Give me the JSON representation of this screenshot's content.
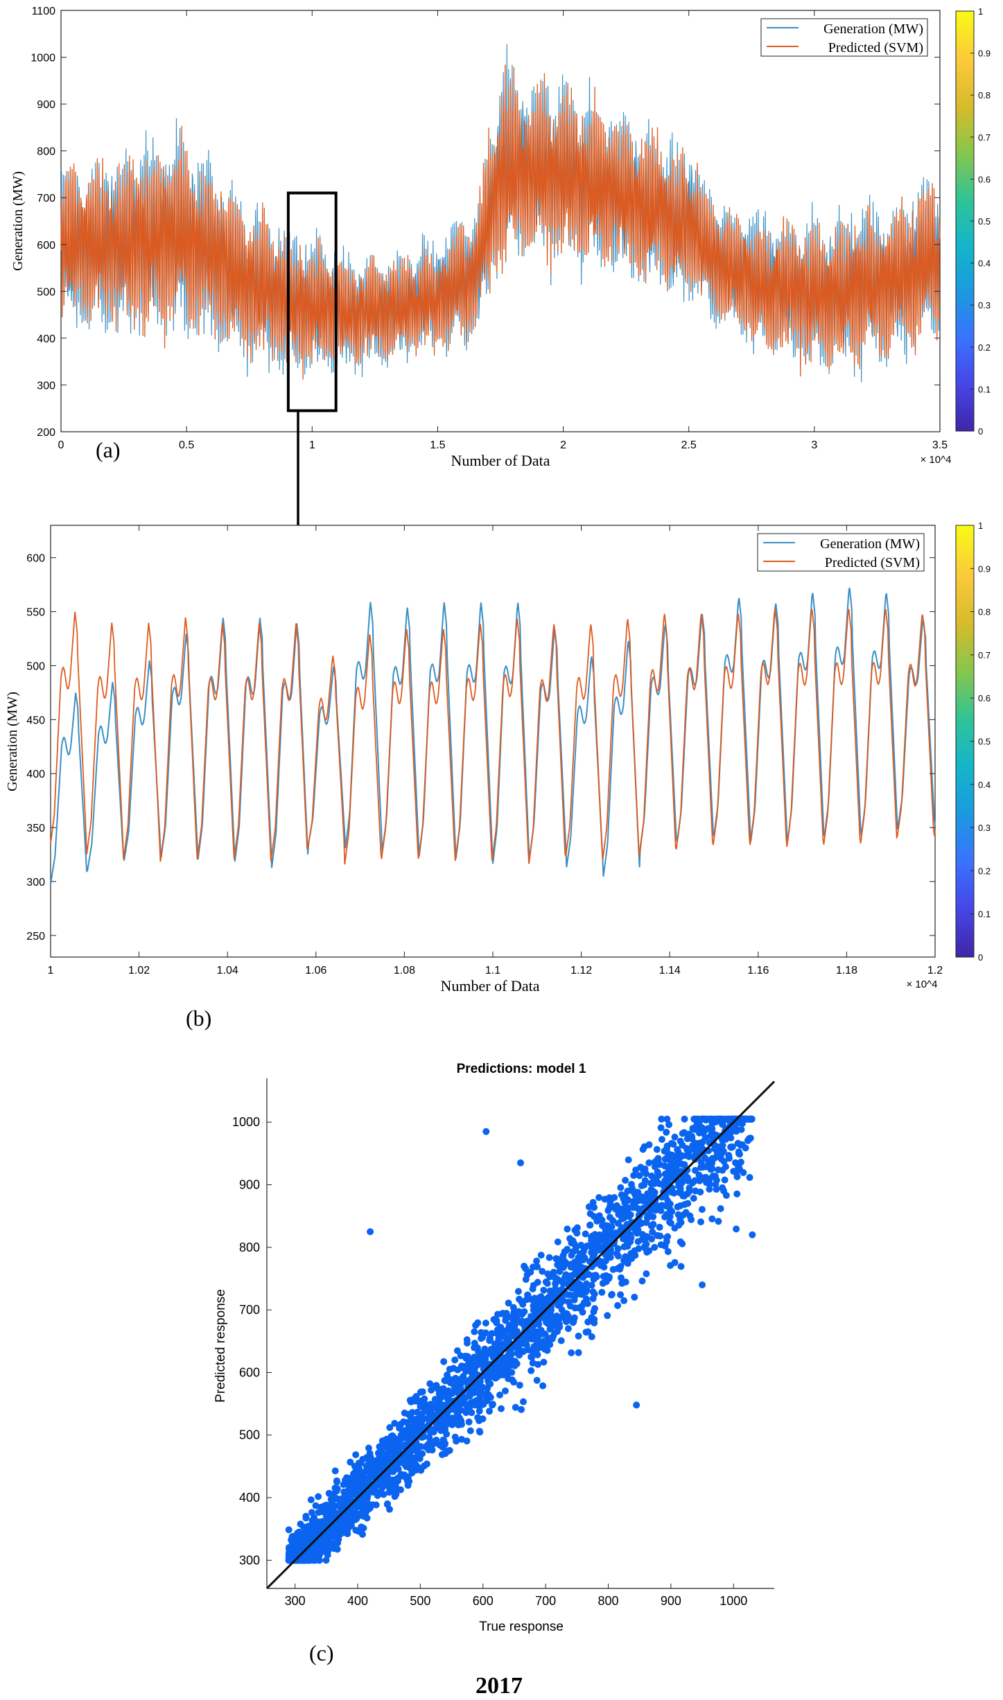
{
  "figure_labels": {
    "a": "(a)",
    "b": "(b)",
    "c": "(c)",
    "caption": "2017"
  },
  "colors": {
    "generation": "#3a8fc4",
    "predicted": "#dd5a1f",
    "scatter": "#0a64f0",
    "axis": "#222222",
    "colorbar": [
      "#3e26a8",
      "#4745e6",
      "#3a72fe",
      "#1b99e0",
      "#14b5c9",
      "#30c397",
      "#85c64e",
      "#d6bb2b",
      "#fbc83c",
      "#f9fb15"
    ]
  },
  "chart_data": [
    {
      "id": "a",
      "type": "line",
      "title": "",
      "xlabel": "Number of Data",
      "ylabel": "Generation (MW)",
      "x_exponent": "× 10^4",
      "xlim": [
        0,
        3.5
      ],
      "ylim": [
        200,
        1100
      ],
      "xticks": [
        0,
        0.5,
        1,
        1.5,
        2,
        2.5,
        3,
        3.5
      ],
      "xtick_labels": [
        "0",
        "0.5",
        "1",
        "1.5",
        "2",
        "2.5",
        "3",
        "3.5"
      ],
      "yticks": [
        200,
        300,
        400,
        500,
        600,
        700,
        800,
        900,
        1000,
        1100
      ],
      "ytick_labels": [
        "200",
        "300",
        "400",
        "500",
        "600",
        "700",
        "800",
        "900",
        "1000",
        "1100"
      ],
      "legend": [
        "Generation (MW)",
        "Predicted (SVM)"
      ],
      "legend_position": "top-right",
      "series": [
        {
          "name": "Generation (MW)",
          "envelope": {
            "x": [
              0,
              0.25,
              0.5,
              0.75,
              1.0,
              1.25,
              1.5,
              1.65,
              1.75,
              1.85,
              2.0,
              2.25,
              2.5,
              2.6,
              2.75,
              3.0,
              3.25,
              3.5
            ],
            "low": [
              410,
              400,
              390,
              340,
              310,
              330,
              360,
              380,
              520,
              560,
              550,
              520,
              470,
              430,
              360,
              320,
              340,
              370
            ],
            "high": [
              780,
              800,
              850,
              700,
              620,
              580,
              620,
              690,
              1020,
              960,
              960,
              890,
              820,
              700,
              680,
              670,
              700,
              760
            ]
          }
        },
        {
          "name": "Predicted (SVM)",
          "envelope": {
            "x": [
              0,
              0.25,
              0.5,
              0.75,
              1.0,
              1.25,
              1.5,
              1.65,
              1.75,
              1.85,
              2.0,
              2.25,
              2.5,
              2.6,
              2.75,
              3.0,
              3.25,
              3.5
            ],
            "low": [
              420,
              410,
              400,
              350,
              320,
              340,
              370,
              400,
              530,
              570,
              560,
              530,
              480,
              440,
              370,
              330,
              350,
              380
            ],
            "high": [
              760,
              790,
              830,
              690,
              600,
              570,
              600,
              680,
              980,
              940,
              930,
              870,
              800,
              690,
              660,
              650,
              680,
              740
            ]
          }
        }
      ],
      "annotations": [
        "zoom box around x ≈ 0.9–1.1 ×10^4, y ≈ 245–710 with arrow to panel (b)"
      ],
      "colorbar": {
        "ticks": [
          "0",
          "0.1",
          "0.2",
          "0.3",
          "0.4",
          "0.5",
          "0.6",
          "0.7",
          "0.8",
          "0.9",
          "1"
        ]
      }
    },
    {
      "id": "b",
      "type": "line",
      "title": "",
      "xlabel": "Number of Data",
      "ylabel": "Generation (MW)",
      "x_exponent": "× 10^4",
      "xlim": [
        1.0,
        1.2
      ],
      "ylim": [
        230,
        630
      ],
      "xticks": [
        1,
        1.02,
        1.04,
        1.06,
        1.08,
        1.1,
        1.12,
        1.14,
        1.16,
        1.18,
        1.2
      ],
      "xtick_labels": [
        "1",
        "1.02",
        "1.04",
        "1.06",
        "1.08",
        "1.1",
        "1.12",
        "1.14",
        "1.16",
        "1.18",
        "1.2"
      ],
      "yticks": [
        250,
        300,
        350,
        400,
        450,
        500,
        550,
        600
      ],
      "ytick_labels": [
        "250",
        "300",
        "350",
        "400",
        "450",
        "500",
        "550",
        "600"
      ],
      "legend": [
        "Generation (MW)",
        "Predicted (SVM)"
      ],
      "legend_position": "top-right",
      "daily_cycle": {
        "period": 0.00833,
        "start": 1.0,
        "generation_peaks": [
          475,
          485,
          505,
          530,
          545,
          545,
          540,
          500,
          560,
          555,
          560,
          560,
          560,
          535,
          510,
          525,
          540,
          550,
          565,
          560,
          570,
          575,
          570,
          545
        ],
        "generation_troughs": [
          298,
          310,
          320,
          322,
          320,
          318,
          312,
          335,
          330,
          326,
          322,
          320,
          315,
          322,
          312,
          303,
          330,
          335,
          340,
          335,
          335,
          340,
          340,
          350
        ],
        "predicted_peaks": [
          550,
          540,
          540,
          545,
          540,
          540,
          540,
          510,
          530,
          535,
          535,
          540,
          545,
          540,
          540,
          545,
          550,
          550,
          550,
          555,
          555,
          555,
          555,
          550
        ],
        "predicted_troughs": [
          330,
          325,
          320,
          318,
          320,
          320,
          318,
          330,
          315,
          320,
          320,
          318,
          318,
          315,
          322,
          318,
          322,
          328,
          332,
          332,
          330,
          332,
          333,
          340
        ]
      },
      "colorbar": {
        "ticks": [
          "0",
          "0.1",
          "0.2",
          "0.3",
          "0.4",
          "0.5",
          "0.6",
          "0.7",
          "0.8",
          "0.9",
          "1"
        ]
      }
    },
    {
      "id": "c",
      "type": "scatter",
      "title": "Predictions: model 1",
      "xlabel": "True response",
      "ylabel": "Predicted response",
      "xlim": [
        255,
        1065
      ],
      "ylim": [
        255,
        1070
      ],
      "xticks": [
        300,
        400,
        500,
        600,
        700,
        800,
        900,
        1000
      ],
      "xtick_labels": [
        "300",
        "400",
        "500",
        "600",
        "700",
        "800",
        "900",
        "1000"
      ],
      "yticks": [
        300,
        400,
        500,
        600,
        700,
        800,
        900,
        1000
      ],
      "ytick_labels": [
        "300",
        "400",
        "500",
        "600",
        "700",
        "800",
        "900",
        "1000"
      ],
      "reference_line": {
        "x": [
          255,
          1065
        ],
        "y": [
          255,
          1065
        ]
      },
      "points": {
        "description": "dense cloud of true vs predicted values around y = x",
        "true_range": [
          290,
          1030
        ],
        "predicted_range": [
          300,
          1005
        ],
        "outliers": [
          [
            845,
            548
          ],
          [
            605,
            985
          ],
          [
            420,
            825
          ],
          [
            980,
            1005
          ],
          [
            1030,
            820
          ],
          [
            950,
            740
          ],
          [
            660,
            935
          ]
        ]
      }
    }
  ]
}
